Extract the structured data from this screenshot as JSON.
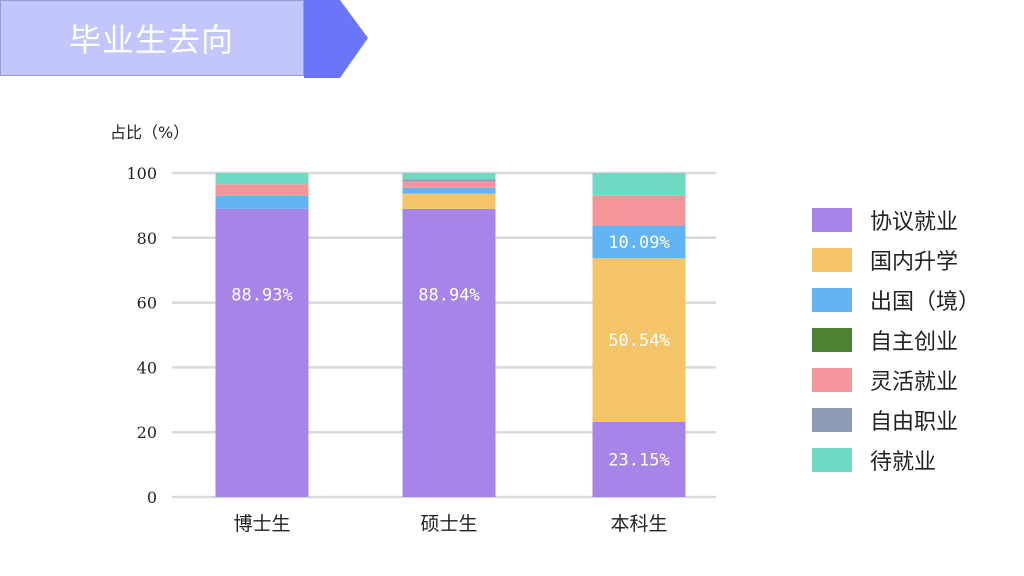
{
  "title": "毕业生去向",
  "colors": {
    "title_bg": "#c3c6fb",
    "title_tab": "#6a76f7"
  },
  "chart_data": {
    "type": "bar",
    "stacked": true,
    "ylabel": "占比（%）",
    "ylim": [
      0,
      100
    ],
    "yticks": [
      0,
      20,
      40,
      60,
      80,
      100
    ],
    "grid": true,
    "legend_position": "right",
    "categories": [
      "博士生",
      "硕士生",
      "本科生"
    ],
    "series": [
      {
        "name": "协议就业",
        "color": "#a684e8",
        "values": [
          88.93,
          88.94,
          23.15
        ]
      },
      {
        "name": "国内升学",
        "color": "#f4c469",
        "values": [
          0,
          4.7,
          50.54
        ]
      },
      {
        "name": "出国（境）",
        "color": "#63b4f5",
        "values": [
          4.0,
          1.8,
          10.09
        ]
      },
      {
        "name": "自主创业",
        "color": "#4e8233",
        "values": [
          0,
          0,
          0
        ]
      },
      {
        "name": "灵活就业",
        "color": "#f4959a",
        "values": [
          3.6,
          2.0,
          9.2
        ]
      },
      {
        "name": "自由职业",
        "color": "#8e9bb5",
        "values": [
          0,
          0.6,
          0
        ]
      },
      {
        "name": "待就业",
        "color": "#6fd9c1",
        "values": [
          3.47,
          1.96,
          7.02
        ]
      }
    ],
    "data_labels": [
      {
        "category": 0,
        "series": 0,
        "text": "88.93%"
      },
      {
        "category": 1,
        "series": 0,
        "text": "88.94%"
      },
      {
        "category": 2,
        "series": 0,
        "text": "23.15%"
      },
      {
        "category": 2,
        "series": 1,
        "text": "50.54%"
      },
      {
        "category": 2,
        "series": 2,
        "text": "10.09%"
      }
    ]
  }
}
